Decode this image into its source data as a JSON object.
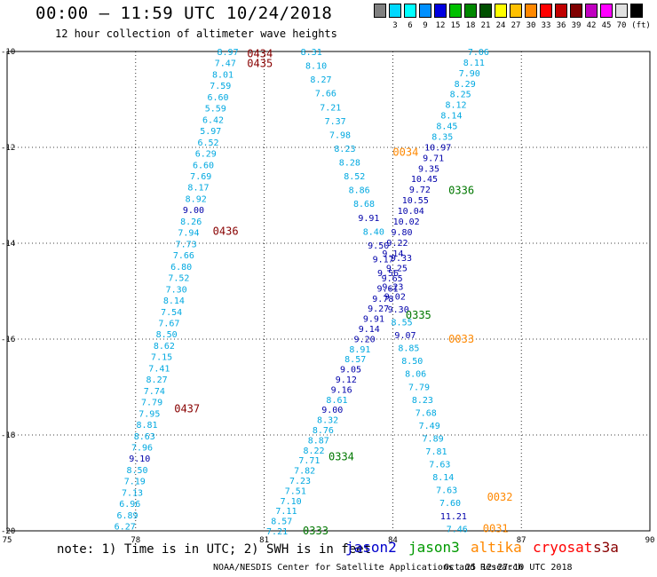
{
  "header": {
    "title": "00:00 – 11:59 UTC 10/24/2018",
    "subtitle": "12 hour collection of altimeter wave heights"
  },
  "legend": {
    "unit": "(ft)",
    "items": [
      {
        "color": "#808080",
        "label": ""
      },
      {
        "color": "#00d8ff",
        "label": "3"
      },
      {
        "color": "#00ffff",
        "label": "6"
      },
      {
        "color": "#0090ff",
        "label": "9"
      },
      {
        "color": "#0000e0",
        "label": "12"
      },
      {
        "color": "#00c000",
        "label": "15"
      },
      {
        "color": "#008800",
        "label": "18"
      },
      {
        "color": "#005000",
        "label": "21"
      },
      {
        "color": "#ffff00",
        "label": "24"
      },
      {
        "color": "#ffc000",
        "label": "27"
      },
      {
        "color": "#ff8800",
        "label": "30"
      },
      {
        "color": "#ff0000",
        "label": "33"
      },
      {
        "color": "#c00000",
        "label": "36"
      },
      {
        "color": "#800000",
        "label": "39"
      },
      {
        "color": "#c000c0",
        "label": "42"
      },
      {
        "color": "#ff00ff",
        "label": "45"
      },
      {
        "color": "#e0e0e0",
        "label": "70"
      },
      {
        "color": "#000000",
        "label": ""
      }
    ]
  },
  "chart_data": {
    "type": "scatter",
    "xlim": [
      75,
      90
    ],
    "ylim": [
      -20,
      -10
    ],
    "xticks": [
      "75",
      "78",
      "81",
      "84",
      "87",
      "90"
    ],
    "yticks": [
      "-10",
      "-12",
      "-14",
      "-16",
      "-18",
      "-20"
    ],
    "grid": true,
    "satellite_colors": {
      "jason2": "#0000aa",
      "jason3": "#007700",
      "altika": "#ff8800",
      "cryosat": "#ff0000",
      "s3a": "#880000"
    },
    "track_labels": [
      {
        "text": "0434",
        "x": 80.6,
        "y": -10.05,
        "sat": "s3a"
      },
      {
        "text": "0435",
        "x": 80.6,
        "y": -10.25,
        "sat": "s3a"
      },
      {
        "text": "0436",
        "x": 79.8,
        "y": -13.75,
        "sat": "s3a"
      },
      {
        "text": "0437",
        "x": 78.9,
        "y": -17.45,
        "sat": "s3a"
      },
      {
        "text": "0034",
        "x": 84.0,
        "y": -12.1,
        "sat": "altika"
      },
      {
        "text": "0336",
        "x": 85.3,
        "y": -12.9,
        "sat": "jason3"
      },
      {
        "text": "0335",
        "x": 84.3,
        "y": -15.5,
        "sat": "jason3"
      },
      {
        "text": "0033",
        "x": 85.3,
        "y": -16.0,
        "sat": "altika"
      },
      {
        "text": "0334",
        "x": 82.5,
        "y": -18.45,
        "sat": "jason3"
      },
      {
        "text": "0032",
        "x": 86.2,
        "y": -19.3,
        "sat": "altika"
      },
      {
        "text": "0333",
        "x": 81.9,
        "y": -20.0,
        "sat": "jason3"
      },
      {
        "text": "0031",
        "x": 86.1,
        "y": -19.95,
        "sat": "altika"
      }
    ],
    "tracks": [
      {
        "name": "s3a-west",
        "x_start": 80.15,
        "y_start": -10.0,
        "x_end": 77.75,
        "y_end": -19.9,
        "values": [
          8.97,
          7.47,
          8.01,
          7.59,
          6.6,
          5.59,
          6.42,
          5.97,
          6.52,
          6.29,
          6.6,
          7.69,
          8.17,
          8.92,
          9.0,
          8.26,
          7.94,
          7.73,
          7.66,
          6.8,
          7.52,
          7.3,
          8.14,
          7.54,
          7.67,
          8.5,
          8.62,
          7.15,
          7.41,
          8.27,
          7.74,
          7.79,
          7.95,
          8.81,
          8.63,
          7.96,
          9.1,
          8.5,
          7.19,
          7.13,
          6.96,
          6.89,
          6.27
        ]
      },
      {
        "name": "mid-descending",
        "x_start": 82.1,
        "y_start": -10.0,
        "x_end": 84.0,
        "y_end": -14.9,
        "values": [
          8.31,
          8.1,
          8.27,
          7.66,
          7.21,
          7.37,
          7.98,
          8.23,
          8.28,
          8.52,
          8.86,
          8.68,
          9.91,
          8.4,
          9.5,
          9.17,
          9.56,
          9.23
        ]
      },
      {
        "name": "mid-continued",
        "x_start": 84.05,
        "y_start": -15.1,
        "x_end": 85.5,
        "y_end": -19.95,
        "values": [
          9.02,
          9.3,
          8.55,
          9.07,
          8.85,
          8.5,
          8.06,
          7.79,
          8.23,
          7.68,
          7.49,
          7.89,
          7.81,
          7.63,
          8.14,
          7.63,
          7.6,
          11.21,
          7.46
        ]
      },
      {
        "name": "east-ascending",
        "x_start": 86.0,
        "y_start": -10.0,
        "x_end": 84.0,
        "y_end": -14.2,
        "values": [
          7.06,
          8.11,
          7.9,
          8.29,
          8.25,
          8.12,
          8.14,
          8.45,
          8.35,
          10.97,
          9.71,
          9.35,
          10.45,
          9.72,
          10.55,
          10.04,
          10.02,
          9.8,
          9.22,
          9.14
        ]
      },
      {
        "name": "lower-ascending",
        "x_start": 84.2,
        "y_start": -14.3,
        "x_end": 81.3,
        "y_end": -20.0,
        "values": [
          9.33,
          9.25,
          9.65,
          9.61,
          9.78,
          9.27,
          9.91,
          9.14,
          9.2,
          8.91,
          8.57,
          9.05,
          9.12,
          9.16,
          8.61,
          9.0,
          8.32,
          8.76,
          8.87,
          8.22,
          7.71,
          7.82,
          7.23,
          7.51,
          7.1,
          7.11,
          8.57,
          7.21
        ]
      }
    ]
  },
  "note": {
    "text": "note: 1) Time is in UTC; 2) SWH is in feet",
    "sats": [
      {
        "label": "jason2",
        "color": "#0000cc"
      },
      {
        "label": "jason3",
        "color": "#009900"
      },
      {
        "label": "altika",
        "color": "#ff8800"
      },
      {
        "label": "cryosat",
        "color": "#ff0000"
      },
      {
        "label": "s3a",
        "color": "#880000"
      }
    ]
  },
  "footer": {
    "credit": "NOAA/NESDIS Center for Satellite Applications and Research",
    "date": "Oct 25 12:27:10 UTC 2018"
  }
}
